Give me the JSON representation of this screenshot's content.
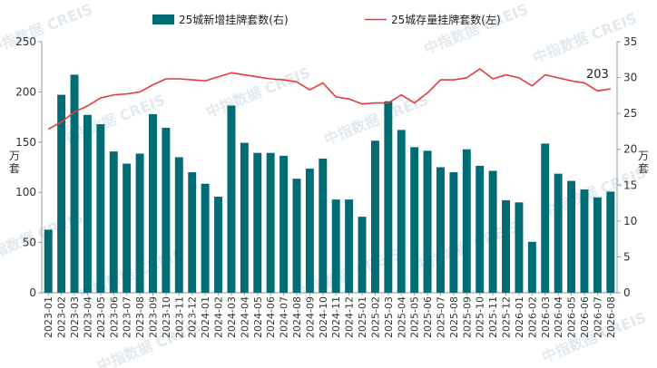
{
  "chart_data": {
    "type": "bar",
    "categories": [
      "2023-01",
      "2023-02",
      "2023-03",
      "2023-04",
      "2023-05",
      "2023-06",
      "2023-07",
      "2023-08",
      "2023-09",
      "2023-10",
      "2023-11",
      "2023-12",
      "2024-01",
      "2024-02",
      "2024-03",
      "2024-04",
      "2024-05",
      "2024-06",
      "2024-07",
      "2024-08",
      "2024-09",
      "2024-10",
      "2024-11",
      "2024-12",
      "2025-01",
      "2025-02",
      "2025-03",
      "2025-04",
      "2025-05",
      "2025-06",
      "2025-07",
      "2025-08",
      "2025-09",
      "2025-10",
      "2025-11",
      "2025-12",
      "2026-01",
      "2026-02",
      "2026-03",
      "2026-04",
      "2026-05",
      "2026-06",
      "2026-07",
      "2026-08"
    ],
    "series": [
      {
        "name": "25城新增挂牌套数(右)",
        "type": "bar",
        "axis": "right",
        "color": "#006d75",
        "values": [
          8.8,
          27.6,
          30.4,
          24.8,
          23.5,
          19.7,
          18.0,
          19.4,
          24.9,
          23.0,
          18.9,
          16.8,
          15.2,
          13.4,
          26.1,
          20.9,
          19.5,
          19.5,
          19.1,
          15.9,
          17.3,
          18.7,
          13.0,
          13.0,
          10.6,
          21.2,
          26.7,
          22.7,
          20.3,
          19.8,
          17.5,
          16.8,
          20.0,
          17.7,
          17.0,
          12.9,
          12.6,
          7.1,
          20.8,
          16.6,
          15.6,
          14.4,
          13.3,
          14.1
        ]
      },
      {
        "name": "25城存量挂牌套数(左)",
        "type": "line",
        "axis": "left",
        "color": "#e63b3b",
        "values": [
          163,
          170,
          180,
          186,
          194,
          197,
          198,
          200,
          207,
          213,
          213,
          212,
          211,
          215,
          219,
          217,
          215,
          213,
          212,
          210,
          202,
          209,
          195,
          193,
          188,
          189,
          189,
          197,
          189,
          199,
          212,
          212,
          214,
          223,
          213,
          217,
          214,
          206,
          217,
          214,
          211,
          209,
          201,
          203
        ]
      }
    ],
    "yleft": {
      "label": "万套",
      "ylim": [
        0,
        250
      ],
      "ticks": [
        0,
        50,
        100,
        150,
        200,
        250
      ]
    },
    "yright": {
      "label": "万套",
      "ylim": [
        0,
        35
      ],
      "ticks": [
        0,
        5,
        10,
        15,
        20,
        25,
        30,
        35
      ]
    },
    "annotation": {
      "text": "203",
      "series": 1,
      "index": 43
    },
    "legend": "top-center",
    "grid": false
  },
  "colors": {
    "bar": "#006d75",
    "line": "#e63b3b",
    "axis": "#999999"
  },
  "watermark": {
    "text": "中指数据 CREIS"
  }
}
